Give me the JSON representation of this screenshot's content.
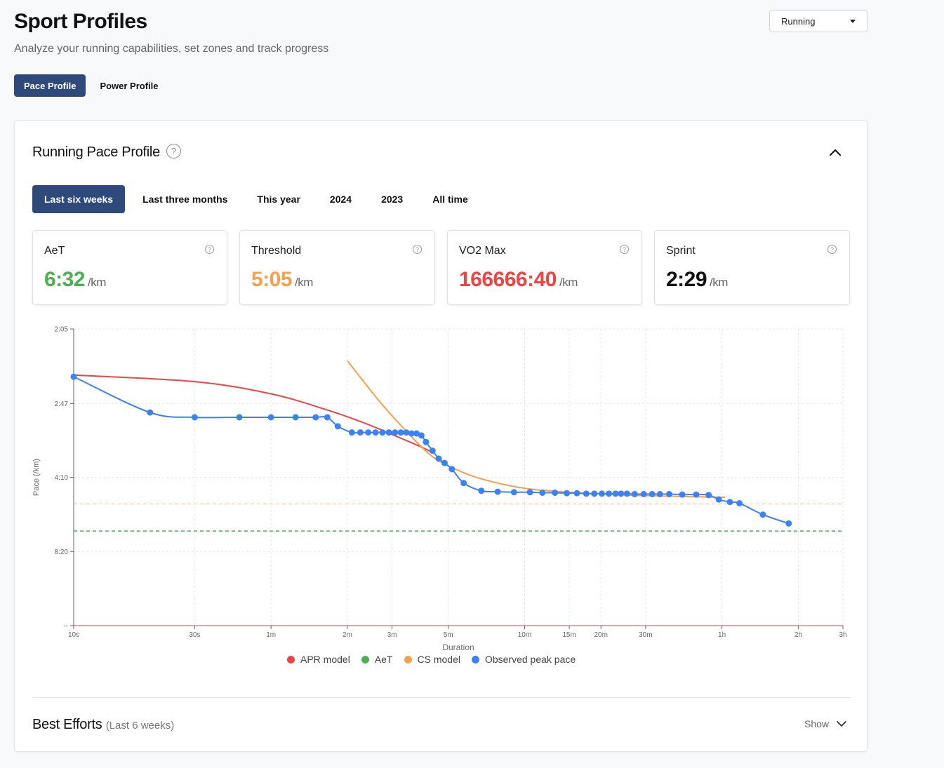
{
  "header": {
    "title": "Sport Profiles",
    "subtitle": "Analyze your running capabilities, set zones and track progress",
    "sport_selected": "Running"
  },
  "profile_tabs": [
    {
      "label": "Pace Profile",
      "active": true
    },
    {
      "label": "Power Profile",
      "active": false
    }
  ],
  "card": {
    "title": "Running Pace Profile",
    "help_glyph": "?"
  },
  "range_tabs": [
    {
      "label": "Last six weeks",
      "active": true
    },
    {
      "label": "Last three months",
      "active": false
    },
    {
      "label": "This year",
      "active": false
    },
    {
      "label": "2024",
      "active": false
    },
    {
      "label": "2023",
      "active": false
    },
    {
      "label": "All time",
      "active": false
    }
  ],
  "stats": [
    {
      "label": "AeT",
      "value": "6:32",
      "unit": "/km",
      "color": "#4caf50"
    },
    {
      "label": "Threshold",
      "value": "5:05",
      "unit": "/km",
      "color": "#f5a04b"
    },
    {
      "label": "VO2 Max",
      "value": "166666:40",
      "unit": "/km",
      "color": "#ef4444"
    },
    {
      "label": "Sprint",
      "value": "2:29",
      "unit": "/km",
      "color": "#111111"
    }
  ],
  "chart_data": {
    "type": "line",
    "xlabel": "Duration",
    "ylabel": "Pace (/km)",
    "x_scale": "log",
    "x_ticks": [
      {
        "s": 10,
        "label": "10s"
      },
      {
        "s": 30,
        "label": "30s"
      },
      {
        "s": 60,
        "label": "1m"
      },
      {
        "s": 120,
        "label": "2m"
      },
      {
        "s": 180,
        "label": "3m"
      },
      {
        "s": 300,
        "label": "5m"
      },
      {
        "s": 600,
        "label": "10m"
      },
      {
        "s": 900,
        "label": "15m"
      },
      {
        "s": 1200,
        "label": "20m"
      },
      {
        "s": 1800,
        "label": "30m"
      },
      {
        "s": 3600,
        "label": "1h"
      },
      {
        "s": 7200,
        "label": "2h"
      },
      {
        "s": 10800,
        "label": "3h"
      }
    ],
    "y_ticks": [
      {
        "pace": 125,
        "label": "2:05"
      },
      {
        "pace": 167,
        "label": "2:47"
      },
      {
        "pace": 250,
        "label": "4:10"
      },
      {
        "pace": 500,
        "label": "8:20"
      },
      {
        "pace": null,
        "label": "--"
      }
    ],
    "xlim": [
      10,
      10800
    ],
    "grid": true,
    "legend_position": "bottom",
    "series": [
      {
        "name": "Observed peak pace",
        "color": "#3b82f6",
        "points": [
          [
            10,
            149
          ],
          [
            20,
            174
          ],
          [
            30,
            178
          ],
          [
            45,
            178
          ],
          [
            60,
            178
          ],
          [
            75,
            178
          ],
          [
            90,
            178
          ],
          [
            100,
            178
          ],
          [
            110,
            186
          ],
          [
            125,
            192
          ],
          [
            135,
            192
          ],
          [
            145,
            192
          ],
          [
            155,
            192
          ],
          [
            165,
            192
          ],
          [
            175,
            192
          ],
          [
            185,
            192
          ],
          [
            195,
            192
          ],
          [
            205,
            192
          ],
          [
            215,
            193
          ],
          [
            225,
            193
          ],
          [
            235,
            195
          ],
          [
            245,
            202
          ],
          [
            260,
            212
          ],
          [
            275,
            222
          ],
          [
            290,
            228
          ],
          [
            310,
            237
          ],
          [
            345,
            260
          ],
          [
            405,
            275
          ],
          [
            470,
            277
          ],
          [
            545,
            278
          ],
          [
            630,
            278
          ],
          [
            705,
            279
          ],
          [
            790,
            279
          ],
          [
            880,
            280
          ],
          [
            965,
            280
          ],
          [
            1050,
            281
          ],
          [
            1130,
            281
          ],
          [
            1210,
            281
          ],
          [
            1290,
            281
          ],
          [
            1370,
            281
          ],
          [
            1440,
            281
          ],
          [
            1520,
            281
          ],
          [
            1630,
            282
          ],
          [
            1770,
            282
          ],
          [
            1910,
            282
          ],
          [
            2050,
            282
          ],
          [
            2230,
            282
          ],
          [
            2510,
            283
          ],
          [
            2850,
            283
          ],
          [
            3190,
            284
          ],
          [
            3500,
            294
          ],
          [
            3870,
            300
          ],
          [
            4220,
            303
          ],
          [
            5220,
            334
          ],
          [
            6600,
            363
          ]
        ]
      },
      {
        "name": "APR model",
        "color": "#ef4444",
        "points": [
          [
            10,
            148
          ],
          [
            30,
            152
          ],
          [
            60,
            160
          ],
          [
            100,
            172
          ],
          [
            140,
            183
          ],
          [
            180,
            194
          ],
          [
            220,
            204
          ],
          [
            260,
            214
          ]
        ]
      },
      {
        "name": "CS model",
        "color": "#f5a04b",
        "points": [
          [
            120,
            140
          ],
          [
            160,
            165
          ],
          [
            200,
            188
          ],
          [
            250,
            215
          ],
          [
            300,
            232
          ],
          [
            400,
            252
          ],
          [
            600,
            270
          ],
          [
            900,
            278
          ],
          [
            1500,
            284
          ],
          [
            2500,
            287
          ],
          [
            3700,
            289
          ]
        ]
      },
      {
        "name": "AeT",
        "color": "#4caf50",
        "value": 392,
        "style": "dashed"
      },
      {
        "name": "Threshold",
        "color": "#f5a04b",
        "value": 305,
        "style": "dashed"
      }
    ]
  },
  "legend": [
    {
      "name": "APR model",
      "color": "#ef4444"
    },
    {
      "name": "AeT",
      "color": "#4caf50"
    },
    {
      "name": "CS model",
      "color": "#f5a04b"
    },
    {
      "name": "Observed peak pace",
      "color": "#3b82f6"
    }
  ],
  "best_efforts": {
    "title": "Best Efforts",
    "subtitle": "(Last 6 weeks)",
    "toggle_label": "Show"
  }
}
